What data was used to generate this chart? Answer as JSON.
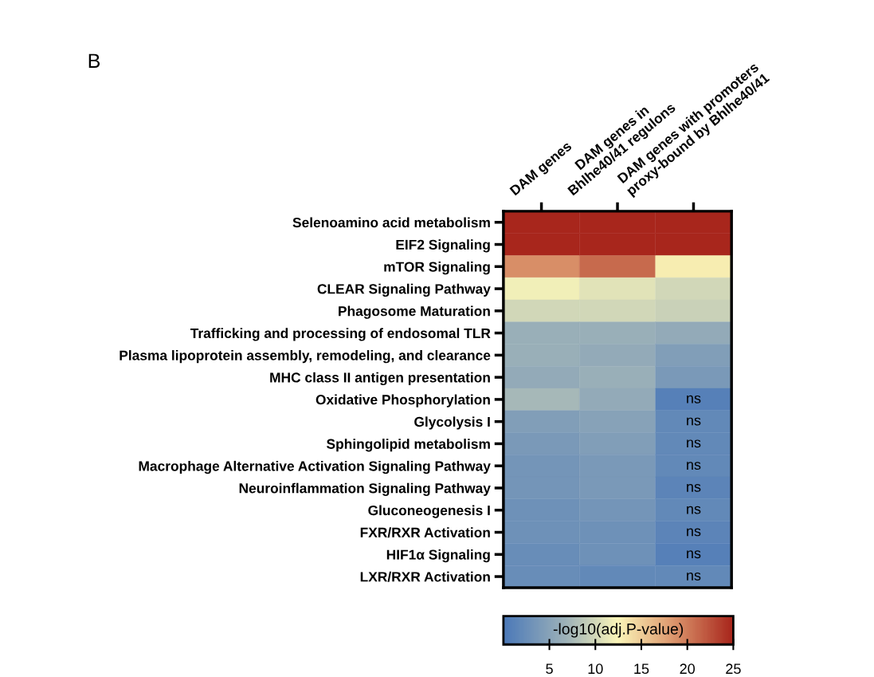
{
  "chart_data": {
    "type": "heatmap",
    "title": "B",
    "categories": [
      "DAM genes",
      "DAM genes in\nBhlhe40/41 regulons",
      "DAM genes with promoters\nproxy-bound by Bhlhe40/41"
    ],
    "y_categories": [
      "Selenoamino acid metabolism",
      "EIF2 Signaling",
      "mTOR Signaling",
      "CLEAR Signaling Pathway",
      "Phagosome Maturation",
      "Trafficking and processing of endosomal TLR",
      "Plasma lipoprotein assembly, remodeling, and clearance",
      "MHC class II antigen presentation",
      "Oxidative Phosphorylation",
      "Glycolysis I",
      "Sphingolipid metabolism",
      "Macrophage Alternative Activation Signaling Pathway",
      "Neuroinflammation Signaling Pathway",
      "Gluconeogenesis I",
      "FXR/RXR Activation",
      "HIF1α Signaling",
      "LXR/RXR Activation"
    ],
    "cells": [
      [
        25,
        25,
        25
      ],
      [
        25,
        25,
        25
      ],
      [
        19,
        21,
        13
      ],
      [
        12,
        11,
        10
      ],
      [
        10,
        10,
        9.5
      ],
      [
        6.5,
        6.5,
        6
      ],
      [
        6.5,
        6,
        4.5
      ],
      [
        6,
        6.5,
        4
      ],
      [
        7.5,
        6,
        1
      ],
      [
        4.5,
        5,
        2
      ],
      [
        4,
        4.5,
        2
      ],
      [
        3.5,
        4,
        2
      ],
      [
        3.5,
        4,
        1.5
      ],
      [
        3,
        3.5,
        2
      ],
      [
        3,
        3,
        1.5
      ],
      [
        2.5,
        3,
        1
      ],
      [
        2.5,
        2,
        2
      ]
    ],
    "cell_labels": [
      [
        null,
        null,
        null
      ],
      [
        null,
        null,
        null
      ],
      [
        null,
        null,
        null
      ],
      [
        null,
        null,
        null
      ],
      [
        null,
        null,
        null
      ],
      [
        null,
        null,
        null
      ],
      [
        null,
        null,
        null
      ],
      [
        null,
        null,
        null
      ],
      [
        null,
        null,
        "ns"
      ],
      [
        null,
        null,
        "ns"
      ],
      [
        null,
        null,
        "ns"
      ],
      [
        null,
        null,
        "ns"
      ],
      [
        null,
        null,
        "ns"
      ],
      [
        null,
        null,
        "ns"
      ],
      [
        null,
        null,
        "ns"
      ],
      [
        null,
        null,
        "ns"
      ],
      [
        null,
        null,
        "ns"
      ]
    ],
    "clabel": "-log10(adj.P-value)",
    "clim": [
      0,
      25
    ],
    "cticks": [
      5,
      10,
      15,
      20,
      25
    ]
  }
}
